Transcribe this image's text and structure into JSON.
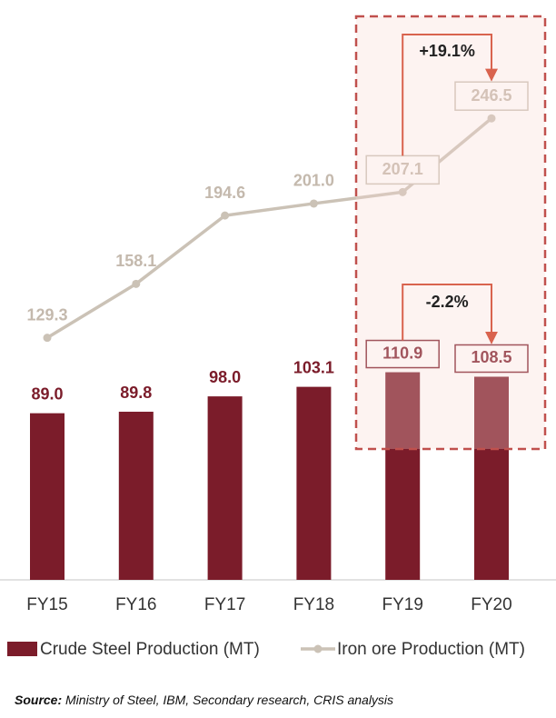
{
  "chart_data": {
    "type": "combo",
    "categories": [
      "FY15",
      "FY16",
      "FY17",
      "FY18",
      "FY19",
      "FY20"
    ],
    "series": [
      {
        "name": "Crude Steel Production (MT)",
        "type": "bar",
        "color": "#7b1c2a",
        "values": [
          89,
          89.8,
          98,
          103.1,
          110.9,
          108.5
        ],
        "value_labels": [
          "89.0",
          "89.8",
          "98.0",
          "103.1",
          "110.9",
          "108.5"
        ]
      },
      {
        "name": "Iron ore Production (MT)",
        "type": "line",
        "color": "#cbc2b6",
        "values": [
          129.3,
          158.1,
          194.6,
          201,
          207.1,
          246.5
        ],
        "value_labels": [
          "129.3",
          "158.1",
          "194.6",
          "201.0",
          "207.1",
          "246.5"
        ]
      }
    ],
    "annotations": [
      "+19.1%",
      "-2.2%"
    ],
    "source_label": "Source:",
    "source": "Ministry of Steel, IBM, Secondary research, CRIS analysis"
  }
}
